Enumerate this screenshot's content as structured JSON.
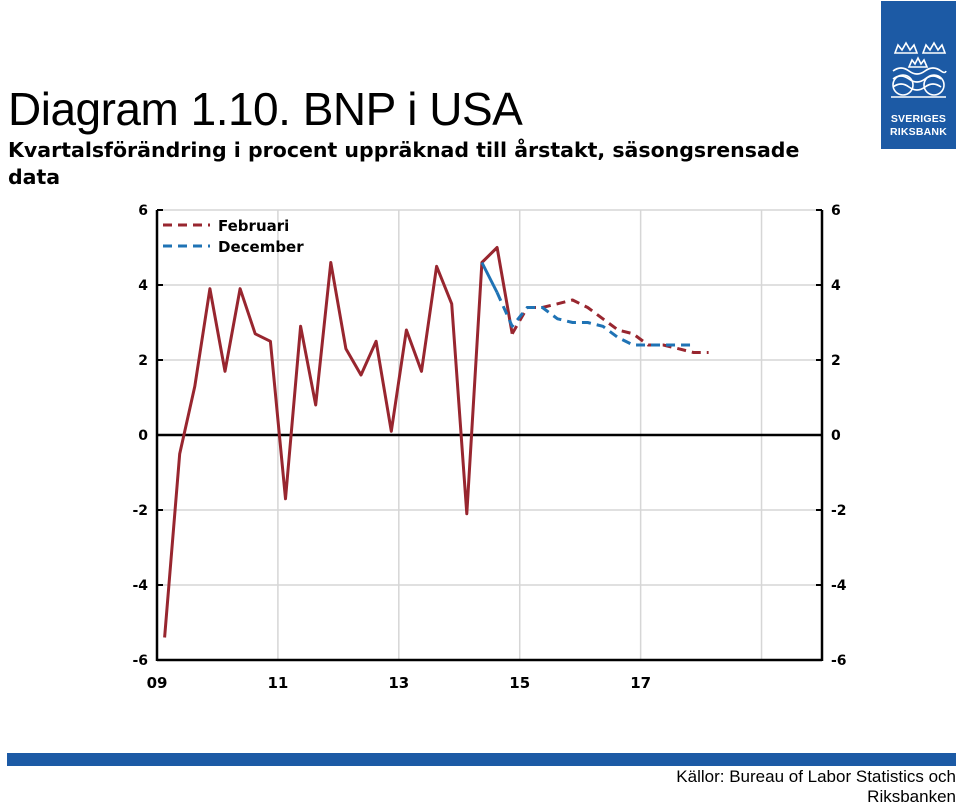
{
  "header": {
    "title": "Diagram 1.10. BNP i USA",
    "subtitle": "Kvartalsförändring i procent uppräknad till årstakt, säsongsrensade data"
  },
  "logo": {
    "line1": "SVERIGES",
    "line2": "RIKSBANK",
    "color": "#1c5aa5"
  },
  "footer": {
    "source": "Källor: Bureau of Labor Statistics och Riksbanken"
  },
  "chart_data": {
    "type": "line",
    "title": "",
    "xlabel": "",
    "ylabel": "",
    "xlim": [
      2009.0,
      2020.0
    ],
    "ylim": [
      -6,
      6
    ],
    "yticks": [
      -6,
      -4,
      -2,
      0,
      2,
      4,
      6
    ],
    "xtick_values": [
      2009,
      2011,
      2013,
      2015,
      2017
    ],
    "xtick_labels": [
      "09",
      "11",
      "13",
      "15",
      "17"
    ],
    "grid": true,
    "legend": "top-left",
    "colors": {
      "Februari": "#98262f",
      "December": "#1f73b5",
      "zero_line": "#000000"
    },
    "series": [
      {
        "name": "Februari",
        "style": "solid",
        "x": [
          2009.125,
          2009.375,
          2009.625,
          2009.875,
          2010.125,
          2010.375,
          2010.625,
          2010.875,
          2011.125,
          2011.375,
          2011.625,
          2011.875,
          2012.125,
          2012.375,
          2012.625,
          2012.875,
          2013.125,
          2013.375,
          2013.625,
          2013.875,
          2014.125,
          2014.375,
          2014.625,
          2014.875
        ],
        "y": [
          -5.4,
          -0.5,
          1.3,
          3.9,
          1.7,
          3.9,
          2.7,
          2.5,
          -1.7,
          2.9,
          0.8,
          4.6,
          2.3,
          1.6,
          2.5,
          0.1,
          2.8,
          1.7,
          4.5,
          3.5,
          -2.1,
          4.6,
          5.0,
          2.7
        ]
      },
      {
        "name": "Februari",
        "style": "dashed",
        "x": [
          2014.875,
          2015.125,
          2015.375,
          2015.625,
          2015.875,
          2016.125,
          2016.375,
          2016.625,
          2016.875,
          2017.125,
          2017.375,
          2017.625,
          2017.875,
          2018.125
        ],
        "y": [
          2.7,
          3.4,
          3.4,
          3.5,
          3.6,
          3.4,
          3.1,
          2.8,
          2.7,
          2.4,
          2.4,
          2.3,
          2.2,
          2.2
        ]
      },
      {
        "name": "December",
        "style": "solid",
        "x": [
          2014.375,
          2014.625
        ],
        "y": [
          4.6,
          3.8
        ]
      },
      {
        "name": "December",
        "style": "dashed",
        "x": [
          2014.625,
          2014.875,
          2015.125,
          2015.375,
          2015.625,
          2015.875,
          2016.125,
          2016.375,
          2016.625,
          2016.875,
          2017.125,
          2017.375,
          2017.625,
          2017.875
        ],
        "y": [
          3.8,
          2.9,
          3.4,
          3.4,
          3.1,
          3.0,
          3.0,
          2.9,
          2.6,
          2.4,
          2.4,
          2.4,
          2.4,
          2.4
        ]
      }
    ]
  }
}
